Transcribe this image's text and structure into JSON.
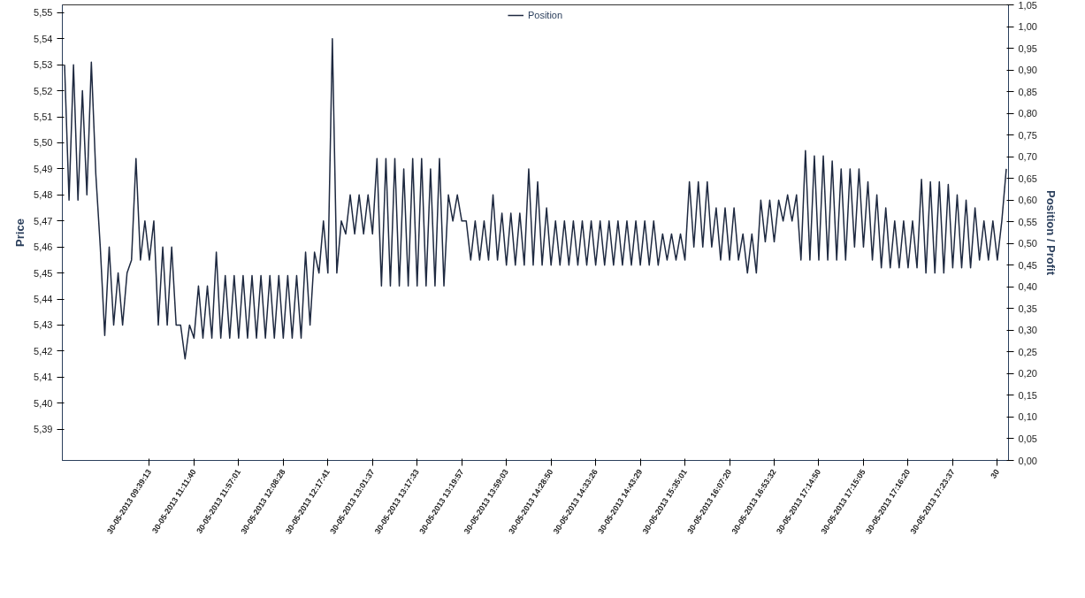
{
  "chart_data": {
    "type": "line",
    "ylabel": "Price",
    "y2label": "Position / Profit",
    "categories": [
      null,
      null,
      null,
      null,
      null,
      null,
      null,
      null,
      null,
      null,
      null,
      null,
      null,
      null,
      null,
      null,
      null,
      null,
      null,
      "30-05-2013 09:39:13",
      null,
      null,
      null,
      null,
      null,
      null,
      null,
      null,
      null,
      "30-05-2013 11:11:40",
      null,
      null,
      null,
      null,
      null,
      null,
      null,
      null,
      null,
      "30-05-2013 11:57:01",
      null,
      null,
      null,
      null,
      null,
      null,
      null,
      null,
      null,
      "30-05-2013 12:08:28",
      null,
      null,
      null,
      null,
      null,
      null,
      null,
      null,
      null,
      "30-05-2013 12:17:41",
      null,
      null,
      null,
      null,
      null,
      null,
      null,
      null,
      null,
      "30-05-2013 13:01:37",
      null,
      null,
      null,
      null,
      null,
      null,
      null,
      null,
      null,
      "30-05-2013 13:17:33",
      null,
      null,
      null,
      null,
      null,
      null,
      null,
      null,
      null,
      "30-05-2013 13:19:57",
      null,
      null,
      null,
      null,
      null,
      null,
      null,
      null,
      null,
      "30-05-2013 13:59:03",
      null,
      null,
      null,
      null,
      null,
      null,
      null,
      null,
      null,
      "30-05-2013 14:28:50",
      null,
      null,
      null,
      null,
      null,
      null,
      null,
      null,
      null,
      "30-05-2013 14:33:26",
      null,
      null,
      null,
      null,
      null,
      null,
      null,
      null,
      null,
      "30-05-2013 14:43:29",
      null,
      null,
      null,
      null,
      null,
      null,
      null,
      null,
      null,
      "30-05-2013 15:35:01",
      null,
      null,
      null,
      null,
      null,
      null,
      null,
      null,
      null,
      "30-05-2013 16:07:20",
      null,
      null,
      null,
      null,
      null,
      null,
      null,
      null,
      null,
      "30-05-2013 16:53:32",
      null,
      null,
      null,
      null,
      null,
      null,
      null,
      null,
      null,
      "30-05-2013 17:14:50",
      null,
      null,
      null,
      null,
      null,
      null,
      null,
      null,
      null,
      "30-05-2013 17:15:05",
      null,
      null,
      null,
      null,
      null,
      null,
      null,
      null,
      null,
      "30-05-2013 17:16:20",
      null,
      null,
      null,
      null,
      null,
      null,
      null,
      null,
      null,
      "30-05-2013 17:23:37",
      null,
      null,
      null,
      null,
      null,
      null,
      null,
      null,
      null,
      "30",
      null,
      null
    ],
    "ylim": [
      5.378,
      5.553
    ],
    "yticks": [
      {
        "value": 5.39,
        "label": "5,39"
      },
      {
        "value": 5.4,
        "label": "5,40"
      },
      {
        "value": 5.41,
        "label": "5,41"
      },
      {
        "value": 5.42,
        "label": "5,42"
      },
      {
        "value": 5.43,
        "label": "5,43"
      },
      {
        "value": 5.44,
        "label": "5,44"
      },
      {
        "value": 5.45,
        "label": "5,45"
      },
      {
        "value": 5.46,
        "label": "5,46"
      },
      {
        "value": 5.47,
        "label": "5,47"
      },
      {
        "value": 5.48,
        "label": "5,48"
      },
      {
        "value": 5.49,
        "label": "5,49"
      },
      {
        "value": 5.5,
        "label": "5,50"
      },
      {
        "value": 5.51,
        "label": "5,51"
      },
      {
        "value": 5.52,
        "label": "5,52"
      },
      {
        "value": 5.53,
        "label": "5,53"
      },
      {
        "value": 5.54,
        "label": "5,54"
      },
      {
        "value": 5.55,
        "label": "5,55"
      }
    ],
    "y2lim": [
      0,
      1.05
    ],
    "y2ticks": [
      {
        "value": 0,
        "label": "0,00"
      },
      {
        "value": 0.05,
        "label": "0,05"
      },
      {
        "value": 0.1,
        "label": "0,10"
      },
      {
        "value": 0.15,
        "label": "0,15"
      },
      {
        "value": 0.2,
        "label": "0,20"
      },
      {
        "value": 0.25,
        "label": "0,25"
      },
      {
        "value": 0.3,
        "label": "0,30"
      },
      {
        "value": 0.35,
        "label": "0,35"
      },
      {
        "value": 0.4,
        "label": "0,40"
      },
      {
        "value": 0.45,
        "label": "0,45"
      },
      {
        "value": 0.5,
        "label": "0,50"
      },
      {
        "value": 0.55,
        "label": "0,55"
      },
      {
        "value": 0.6,
        "label": "0,60"
      },
      {
        "value": 0.65,
        "label": "0,65"
      },
      {
        "value": 0.7,
        "label": "0,70"
      },
      {
        "value": 0.75,
        "label": "0,75"
      },
      {
        "value": 0.8,
        "label": "0,80"
      },
      {
        "value": 0.85,
        "label": "0,85"
      },
      {
        "value": 0.9,
        "label": "0,90"
      },
      {
        "value": 0.95,
        "label": "0,95"
      },
      {
        "value": 1.0,
        "label": "1,00"
      },
      {
        "value": 1.05,
        "label": "1,05"
      }
    ],
    "legend": "top",
    "line_style": "solid",
    "series": [
      {
        "name": "Position",
        "color": "#1e2940",
        "values": [
          5.53,
          5.478,
          5.53,
          5.478,
          5.52,
          5.48,
          5.531,
          5.488,
          5.46,
          5.426,
          5.46,
          5.43,
          5.45,
          5.43,
          5.45,
          5.455,
          5.494,
          5.455,
          5.47,
          5.455,
          5.47,
          5.43,
          5.46,
          5.43,
          5.46,
          5.43,
          5.43,
          5.417,
          5.43,
          5.425,
          5.445,
          5.425,
          5.445,
          5.425,
          5.458,
          5.425,
          5.449,
          5.425,
          5.449,
          5.425,
          5.449,
          5.425,
          5.449,
          5.425,
          5.449,
          5.425,
          5.449,
          5.425,
          5.449,
          5.425,
          5.449,
          5.425,
          5.449,
          5.425,
          5.458,
          5.43,
          5.458,
          5.45,
          5.47,
          5.45,
          5.54,
          5.45,
          5.47,
          5.465,
          5.48,
          5.465,
          5.48,
          5.465,
          5.48,
          5.465,
          5.494,
          5.445,
          5.494,
          5.445,
          5.494,
          5.445,
          5.49,
          5.445,
          5.494,
          5.445,
          5.494,
          5.445,
          5.49,
          5.445,
          5.494,
          5.445,
          5.48,
          5.47,
          5.48,
          5.47,
          5.47,
          5.455,
          5.47,
          5.455,
          5.47,
          5.455,
          5.48,
          5.455,
          5.473,
          5.453,
          5.473,
          5.453,
          5.473,
          5.453,
          5.49,
          5.453,
          5.485,
          5.453,
          5.475,
          5.453,
          5.47,
          5.453,
          5.47,
          5.453,
          5.47,
          5.453,
          5.47,
          5.453,
          5.47,
          5.453,
          5.47,
          5.453,
          5.47,
          5.453,
          5.47,
          5.453,
          5.47,
          5.453,
          5.47,
          5.453,
          5.47,
          5.453,
          5.47,
          5.453,
          5.465,
          5.455,
          5.465,
          5.455,
          5.465,
          5.455,
          5.485,
          5.46,
          5.485,
          5.46,
          5.485,
          5.46,
          5.475,
          5.455,
          5.475,
          5.455,
          5.475,
          5.455,
          5.465,
          5.45,
          5.465,
          5.45,
          5.478,
          5.462,
          5.478,
          5.462,
          5.478,
          5.47,
          5.48,
          5.47,
          5.48,
          5.455,
          5.497,
          5.455,
          5.495,
          5.455,
          5.495,
          5.455,
          5.493,
          5.455,
          5.49,
          5.455,
          5.49,
          5.46,
          5.49,
          5.46,
          5.485,
          5.455,
          5.48,
          5.452,
          5.475,
          5.452,
          5.47,
          5.452,
          5.47,
          5.452,
          5.47,
          5.452,
          5.486,
          5.45,
          5.485,
          5.45,
          5.485,
          5.45,
          5.484,
          5.452,
          5.48,
          5.452,
          5.478,
          5.452,
          5.475,
          5.455,
          5.47,
          5.455,
          5.47,
          5.455,
          5.47,
          5.49
        ]
      }
    ]
  }
}
